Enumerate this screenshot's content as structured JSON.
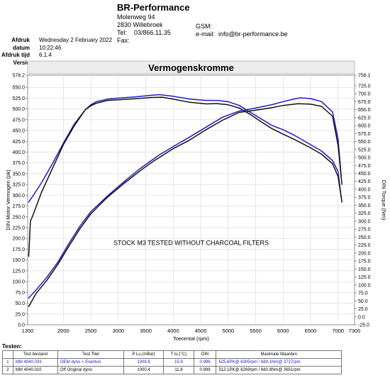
{
  "header": {
    "company": "BR-Performance",
    "address_line1": "Molenweg 94",
    "address_line2": "2830 Willebroek",
    "tel_label": "Tel:",
    "tel_value": "03/866.11.35",
    "fax_label": "Fax:",
    "gsm_label": "GSM:",
    "email_label": "e-mail:",
    "email_value": "info@br-performance.be"
  },
  "meta": {
    "date_label": "Afdruk datum",
    "date_value": "Wednesday 2 February 2022",
    "time_label": "Afdruk tijd",
    "time_value": "10:22:46",
    "version_label": "Versie",
    "version_value": "6.1.4"
  },
  "chart_data": {
    "type": "line",
    "title": "Vermogenskromme",
    "xlabel": "Toerental (rpm)",
    "ylabel_left": "DIN Motor Vermogen (pk)",
    "ylabel_right": "DIN Torque (Nm)",
    "annotation": "STOCK M3 TESTED WITHOUT CHARCOAL FILTERS",
    "xlim": [
      1350,
      7300
    ],
    "x_ticks": [
      "1350",
      "2000",
      "2500",
      "3000",
      "3500",
      "4000",
      "4500",
      "5000",
      "5500",
      "6000",
      "6500",
      "7000",
      "7300"
    ],
    "ylim_left": [
      0,
      578.2
    ],
    "y_ticks_left": [
      "0.0",
      "25.0",
      "50.0",
      "75.0",
      "100.0",
      "125.0",
      "150.0",
      "175.0",
      "200.0",
      "225.0",
      "250.0",
      "275.0",
      "300.0",
      "325.0",
      "350.0",
      "375.0",
      "400.0",
      "425.0",
      "450.0",
      "475.0",
      "500.0",
      "525.0",
      "550.0",
      "578.2"
    ],
    "ylim_right": [
      -25,
      758.1
    ],
    "y_ticks_right": [
      "-25.0",
      "0.0",
      "25.0",
      "50.0",
      "75.0",
      "100.0",
      "125.0",
      "150.0",
      "175.0",
      "200.0",
      "225.0",
      "250.0",
      "275.0",
      "300.0",
      "325.0",
      "350.0",
      "375.0",
      "400.0",
      "425.0",
      "450.0",
      "475.0",
      "500.0",
      "525.0",
      "550.0",
      "575.0",
      "600.0",
      "625.0",
      "650.0",
      "675.0",
      "700.0",
      "725.0",
      "758.1"
    ],
    "grid": true,
    "colors": {
      "blue": "#1a1acc",
      "black": "#111111"
    },
    "series": [
      {
        "color": "blue",
        "axis": "right",
        "x": [
          1370,
          1450,
          1600,
          1800,
          2000,
          2200,
          2400,
          2500,
          2600,
          2800,
          3000,
          3300,
          3600,
          3750,
          4000,
          4300,
          4600,
          4800,
          5000,
          5200,
          5400,
          5600,
          5800,
          6000,
          6200,
          6300,
          6500,
          6700,
          6900,
          7000,
          7060
        ],
        "y": [
          360,
          380,
          420,
          480,
          545,
          605,
          650,
          665,
          675,
          683,
          686,
          690,
          695,
          697,
          692,
          683,
          679,
          679,
          675,
          663,
          642,
          621,
          600,
          587,
          570,
          560,
          540,
          520,
          490,
          455,
          370
        ]
      },
      {
        "color": "black",
        "axis": "right",
        "x": [
          1370,
          1400,
          1450,
          1600,
          1800,
          2000,
          2200,
          2400,
          2500,
          2600,
          2800,
          3000,
          3300,
          3600,
          3800,
          4000,
          4300,
          4600,
          4800,
          5000,
          5200,
          5400,
          5600,
          5800,
          6000,
          6200,
          6500,
          6700,
          6900,
          7000,
          7070
        ],
        "y": [
          190,
          300,
          320,
          390,
          465,
          540,
          600,
          650,
          662,
          670,
          679,
          681,
          684,
          688,
          689,
          683,
          673,
          668,
          669,
          665,
          655,
          635,
          612,
          590,
          573,
          557,
          530,
          510,
          480,
          440,
          360
        ]
      },
      {
        "color": "blue",
        "axis": "left",
        "x": [
          1370,
          1500,
          1700,
          1900,
          2100,
          2300,
          2500,
          2800,
          3100,
          3400,
          3727,
          4000,
          4300,
          4600,
          4900,
          5200,
          5500,
          5800,
          6000,
          6200,
          6305,
          6500,
          6700,
          6900,
          7000,
          7060
        ],
        "y": [
          62,
          80,
          110,
          145,
          188,
          228,
          262,
          298,
          331,
          362,
          392,
          413,
          435,
          458,
          481,
          495,
          502,
          510,
          517,
          523,
          525.6,
          524,
          517,
          493,
          430,
          340
        ]
      },
      {
        "color": "black",
        "axis": "left",
        "x": [
          1370,
          1500,
          1700,
          1900,
          2100,
          2300,
          2500,
          2800,
          3100,
          3400,
          3651,
          4000,
          4300,
          4600,
          4900,
          5200,
          5500,
          5800,
          6000,
          6269,
          6500,
          6700,
          6900,
          7000,
          7070
        ],
        "y": [
          42,
          72,
          103,
          140,
          182,
          222,
          257,
          295,
          327,
          357,
          380,
          408,
          428,
          452,
          474,
          492,
          497,
          503,
          508,
          512.1,
          511,
          506,
          483,
          415,
          325
        ]
      }
    ]
  },
  "tests": {
    "title": "Testen:",
    "columns": [
      "",
      "Test bestand",
      "Test Titel",
      "P Lu.(mBar)",
      "T lu.(°C)",
      "DIN",
      "Maximale Waarden"
    ],
    "rows": [
      [
        "1",
        "MM 4040.033",
        "OEM dyno + Eventuri",
        "1009.8",
        "15.9",
        "0.996",
        "525.6PK@ 6305rpm / 689.1Nm@ 3727rpm"
      ],
      [
        "2",
        "MM 4040.010",
        "Off Original dyno",
        "1000.4",
        "11.8",
        "0.999",
        "512.1PK@ 6269rpm / 680.8Nm@ 3651rpm"
      ]
    ]
  }
}
